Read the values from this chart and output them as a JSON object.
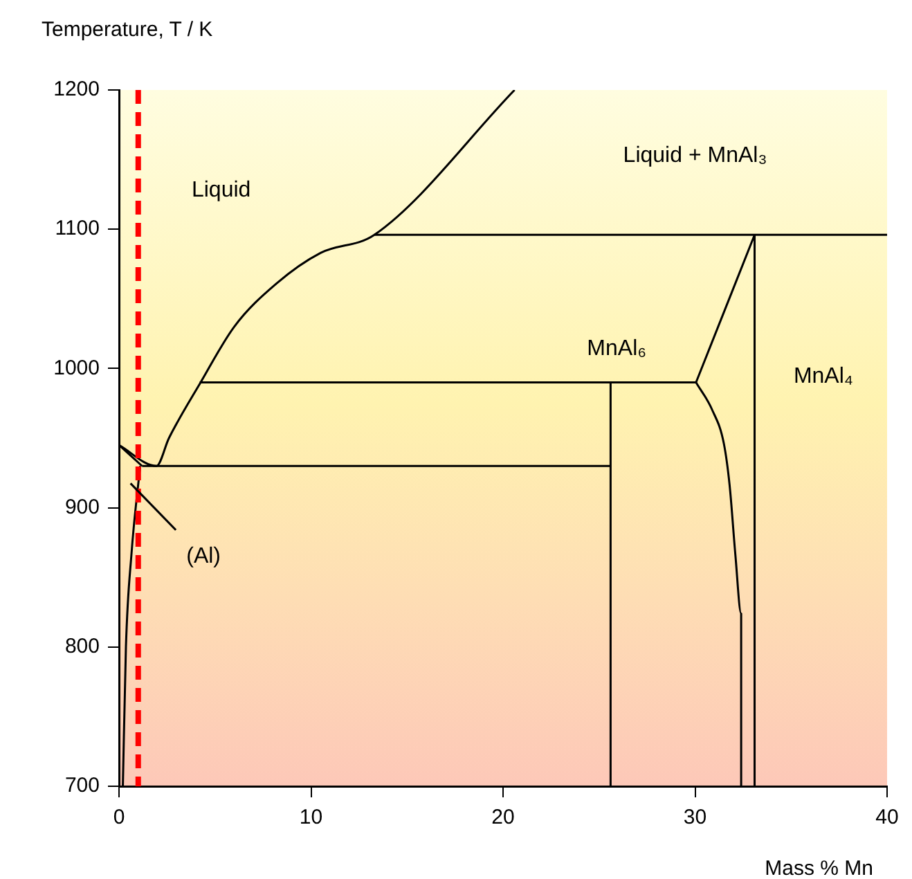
{
  "chart_data": {
    "type": "line",
    "xlabel": "Mass % Mn",
    "ylabel": "Temperature, T / K",
    "xlim": [
      0,
      40
    ],
    "ylim": [
      700,
      1200
    ],
    "xticks": [
      0,
      10,
      20,
      30,
      40
    ],
    "yticks": [
      700,
      800,
      900,
      1000,
      1100,
      1200
    ],
    "grid": false,
    "legend": false,
    "marker": "none",
    "line_style": "solid",
    "series": [
      {
        "color": "#000000",
        "x": [
          0,
          1.95,
          2.6,
          4.25,
          6,
          8.2,
          10.5,
          13.3,
          20.6
        ],
        "values": [
          945,
          930,
          950,
          990,
          1030,
          1061,
          1083,
          1096,
          1200
        ]
      },
      {
        "color": "#000000",
        "x": [
          0,
          1.2
        ],
        "values": [
          945,
          930
        ]
      },
      {
        "color": "#000000",
        "x": [
          1.1,
          0.65,
          0.36,
          0.2
        ],
        "values": [
          930,
          867,
          800,
          700
        ]
      },
      {
        "color": "#000000",
        "x": [
          1.2,
          25.6
        ],
        "values": [
          930,
          930
        ]
      },
      {
        "color": "#000000",
        "x": [
          4.2,
          30.05
        ],
        "values": [
          990,
          990
        ]
      },
      {
        "color": "#000000",
        "x": [
          13.3,
          40
        ],
        "values": [
          1096,
          1096
        ]
      },
      {
        "color": "#000000",
        "x": [
          25.6,
          25.6
        ],
        "values": [
          700,
          990
        ]
      },
      {
        "color": "#000000",
        "x": [
          33.1,
          33.1
        ],
        "values": [
          700,
          1096
        ]
      },
      {
        "color": "#000000",
        "x": [
          30.05,
          33.1
        ],
        "values": [
          990,
          1096
        ]
      },
      {
        "color": "#000000",
        "x": [
          30.05,
          30.9,
          31.5,
          31.8,
          32.1,
          32.4,
          32.4
        ],
        "values": [
          990,
          970,
          946,
          916,
          866,
          824,
          700
        ]
      }
    ],
    "ref_lines": [
      {
        "axis": "x",
        "value": 1,
        "color": "#ff0000",
        "line_style": "dashed"
      }
    ],
    "annotations": [
      "Liquid",
      "Liquid + MnAl₃",
      "MnAl₆",
      "MnAl₄",
      "(Al)"
    ]
  }
}
